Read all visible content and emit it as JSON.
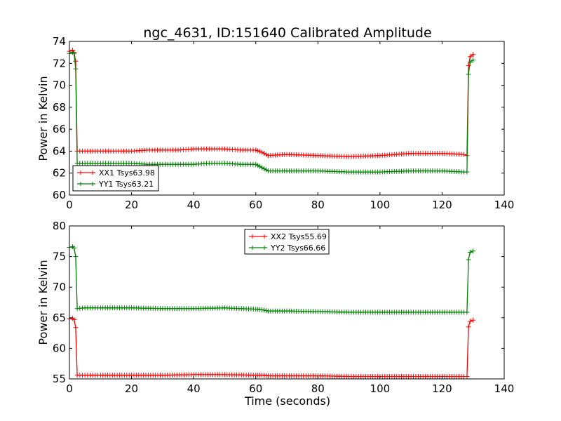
{
  "chart_data": [
    {
      "type": "line",
      "title": "ngc_4631, ID:151640 Calibrated Amplitude",
      "xlabel": "",
      "ylabel": "Power in Kelvin",
      "xlim": [
        0,
        140
      ],
      "ylim": [
        60,
        74
      ],
      "xticks": [
        "0",
        "20",
        "40",
        "60",
        "80",
        "100",
        "120",
        "140"
      ],
      "yticks": [
        "60",
        "62",
        "64",
        "66",
        "68",
        "70",
        "72",
        "74"
      ],
      "legend_position": "lower-left",
      "series": [
        {
          "name": "XX1 Tsys63.98",
          "color": "#ff0000",
          "x": [
            0,
            1,
            1.5,
            2,
            2.5,
            5,
            10,
            15,
            20,
            25,
            30,
            35,
            40,
            45,
            50,
            55,
            60,
            62,
            64,
            70,
            80,
            90,
            100,
            110,
            120,
            127,
            128,
            128.5,
            129,
            130
          ],
          "y": [
            73.1,
            73.2,
            73.0,
            72.2,
            64.0,
            64.0,
            64.0,
            64.0,
            64.0,
            64.1,
            64.1,
            64.1,
            64.2,
            64.2,
            64.2,
            64.1,
            64.1,
            63.9,
            63.6,
            63.7,
            63.6,
            63.5,
            63.6,
            63.8,
            63.8,
            63.7,
            63.6,
            71.8,
            72.6,
            72.8
          ]
        },
        {
          "name": "YY1 Tsys63.21",
          "color": "#008000",
          "x": [
            0,
            1,
            1.5,
            2,
            2.5,
            5,
            10,
            15,
            20,
            25,
            30,
            35,
            40,
            45,
            50,
            55,
            60,
            62,
            64,
            70,
            80,
            90,
            100,
            110,
            120,
            127,
            128,
            128.5,
            129,
            130
          ],
          "y": [
            72.9,
            73.0,
            72.9,
            71.5,
            62.9,
            62.9,
            62.9,
            62.9,
            62.9,
            62.8,
            62.8,
            62.8,
            62.8,
            62.9,
            62.9,
            62.8,
            62.8,
            62.5,
            62.2,
            62.2,
            62.2,
            62.1,
            62.1,
            62.2,
            62.2,
            62.1,
            62.1,
            71.0,
            72.1,
            72.3
          ]
        }
      ]
    },
    {
      "type": "line",
      "title": "",
      "xlabel": "Time (seconds)",
      "ylabel": "Power in Kelvin",
      "xlim": [
        0,
        140
      ],
      "ylim": [
        55,
        80
      ],
      "xticks": [
        "0",
        "20",
        "40",
        "60",
        "80",
        "100",
        "120",
        "140"
      ],
      "yticks": [
        "55",
        "60",
        "65",
        "70",
        "75",
        "80"
      ],
      "legend_position": "upper-center",
      "series": [
        {
          "name": "XX2 Tsys55.69",
          "color": "#ff0000",
          "x": [
            0,
            1,
            1.5,
            2,
            2.5,
            5,
            10,
            20,
            30,
            40,
            50,
            60,
            62,
            64,
            70,
            80,
            90,
            100,
            110,
            120,
            127,
            128,
            128.5,
            129,
            130
          ],
          "y": [
            64.8,
            64.9,
            64.7,
            63.4,
            55.6,
            55.6,
            55.6,
            55.6,
            55.6,
            55.7,
            55.7,
            55.6,
            55.6,
            55.5,
            55.5,
            55.5,
            55.4,
            55.4,
            55.4,
            55.4,
            55.4,
            55.4,
            63.5,
            64.4,
            64.6
          ]
        },
        {
          "name": "YY2 Tsys66.66",
          "color": "#008000",
          "x": [
            0,
            1,
            1.5,
            2,
            2.5,
            5,
            10,
            20,
            30,
            40,
            50,
            60,
            62,
            64,
            70,
            80,
            90,
            100,
            110,
            120,
            127,
            128,
            128.5,
            129,
            130
          ],
          "y": [
            76.5,
            76.6,
            76.4,
            75.0,
            66.5,
            66.6,
            66.6,
            66.6,
            66.5,
            66.5,
            66.6,
            66.4,
            66.3,
            66.1,
            66.1,
            66.0,
            65.9,
            65.9,
            65.9,
            65.9,
            65.9,
            65.9,
            74.5,
            75.7,
            75.9
          ]
        }
      ]
    }
  ]
}
